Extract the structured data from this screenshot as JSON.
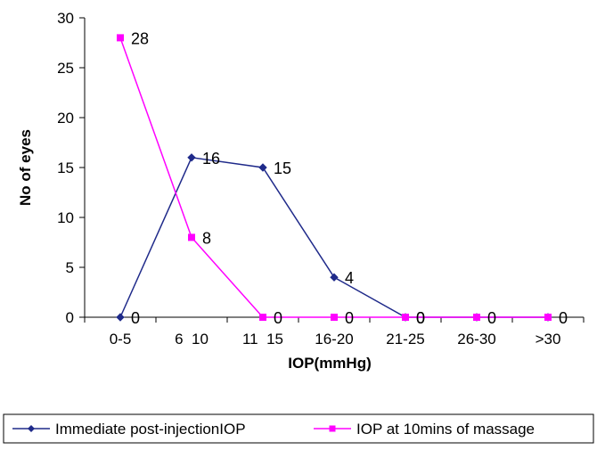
{
  "chart_data": {
    "type": "line",
    "categories": [
      "0-5",
      "6  10",
      "11  15",
      "16-20",
      "21-25",
      "26-30",
      ">30"
    ],
    "series": [
      {
        "name": "Immediate post-injectionIOP",
        "values": [
          0,
          16,
          15,
          4,
          0,
          0,
          0
        ],
        "labels": [
          "0",
          "16",
          "15",
          "4",
          "0",
          "",
          ""
        ],
        "color": "#1f2a8a",
        "marker": "diamond"
      },
      {
        "name": "IOP at 10mins of massage",
        "values": [
          28,
          8,
          0,
          0,
          0,
          0,
          0
        ],
        "labels": [
          "28",
          "8",
          "0",
          "0",
          "0",
          "0",
          "0"
        ],
        "color": "#ff00ff",
        "marker": "square"
      }
    ],
    "xlabel": "IOP(mmHg)",
    "ylabel": "No of eyes",
    "ylim": [
      0,
      30
    ],
    "yticks": [
      "0",
      "5",
      "10",
      "15",
      "20",
      "25",
      "30"
    ],
    "grid": false,
    "legend": "bottom"
  }
}
